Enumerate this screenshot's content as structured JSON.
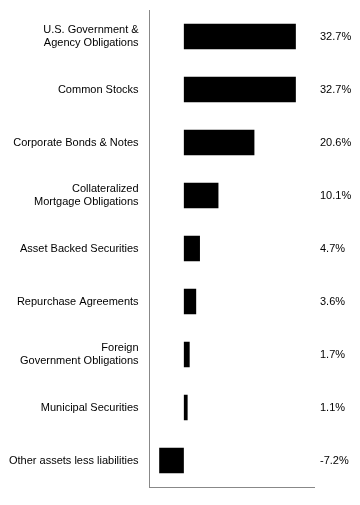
{
  "chart_data": {
    "type": "bar",
    "orientation": "horizontal",
    "categories": [
      "U.S. Government &\nAgency Obligations",
      "Common Stocks",
      "Corporate Bonds & Notes",
      "Collateralized\nMortgage Obligations",
      "Asset Backed Securities",
      "Repurchase Agreements",
      "Foreign\nGovernment Obligations",
      "Municipal Securities",
      "Other assets less liabilities"
    ],
    "values": [
      32.7,
      32.7,
      20.6,
      10.1,
      4.7,
      3.6,
      1.7,
      1.1,
      -7.2
    ],
    "value_labels": [
      "32.7%",
      "32.7%",
      "20.6%",
      "10.1%",
      "4.7%",
      "3.6%",
      "1.7%",
      "1.1%",
      "-7.2%"
    ],
    "data_labels": true,
    "color": "#000000",
    "xlim": [
      -10,
      38
    ],
    "tick_labels": "y",
    "grid": false
  }
}
